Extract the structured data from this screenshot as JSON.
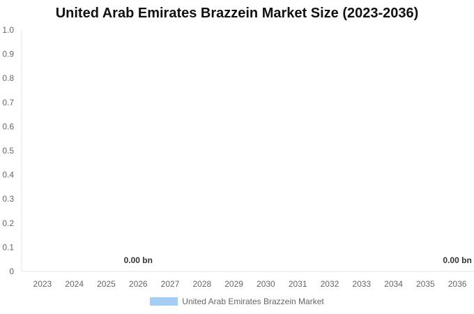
{
  "chart_data": {
    "type": "bar",
    "title": "United Arab Emirates Brazzein Market Size (2023-2036)",
    "categories": [
      "2023",
      "2024",
      "2025",
      "2026",
      "2027",
      "2028",
      "2029",
      "2030",
      "2031",
      "2032",
      "2033",
      "2034",
      "2035",
      "2036"
    ],
    "series": [
      {
        "name": "United Arab Emirates Brazzein Market",
        "values": [
          0,
          0,
          0,
          0,
          0,
          0,
          0,
          0,
          0,
          0,
          0,
          0,
          0,
          0
        ],
        "color": "#a6cef5"
      }
    ],
    "data_labels": [
      {
        "category": "2026",
        "text": "0.00 bn"
      },
      {
        "category": "2036",
        "text": "0.00 bn"
      }
    ],
    "y_ticks": [
      "0",
      "0.1",
      "0.2",
      "0.3",
      "0.4",
      "0.5",
      "0.6",
      "0.7",
      "0.8",
      "0.9",
      "1.0"
    ],
    "ylim": [
      0,
      1
    ],
    "grid": false,
    "legend_position": "bottom",
    "xlabel": "",
    "ylabel": ""
  }
}
